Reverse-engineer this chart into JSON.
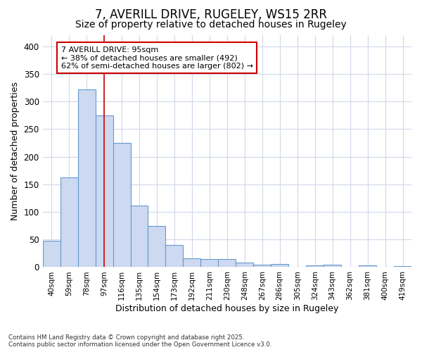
{
  "title": "7, AVERILL DRIVE, RUGELEY, WS15 2RR",
  "subtitle": "Size of property relative to detached houses in Rugeley",
  "xlabel": "Distribution of detached houses by size in Rugeley",
  "ylabel": "Number of detached properties",
  "bins": [
    "40sqm",
    "59sqm",
    "78sqm",
    "97sqm",
    "116sqm",
    "135sqm",
    "154sqm",
    "173sqm",
    "192sqm",
    "211sqm",
    "230sqm",
    "248sqm",
    "267sqm",
    "286sqm",
    "305sqm",
    "324sqm",
    "343sqm",
    "362sqm",
    "381sqm",
    "400sqm",
    "419sqm"
  ],
  "values": [
    48,
    162,
    322,
    275,
    225,
    112,
    74,
    40,
    16,
    15,
    14,
    8,
    5,
    6,
    0,
    3,
    4,
    0,
    3,
    0,
    2
  ],
  "bar_color": "#ccd9f0",
  "bar_edge_color": "#6699cc",
  "background_color": "#ffffff",
  "grid_color": "#d0d8e8",
  "vline_x_index": 3,
  "vline_color": "#cc0000",
  "annotation_text": "7 AVERILL DRIVE: 95sqm\n← 38% of detached houses are smaller (492)\n62% of semi-detached houses are larger (802) →",
  "annotation_box_color": "white",
  "annotation_box_edge_color": "#cc0000",
  "footnote1": "Contains HM Land Registry data © Crown copyright and database right 2025.",
  "footnote2": "Contains public sector information licensed under the Open Government Licence v3.0.",
  "ylim": [
    0,
    420
  ],
  "title_fontsize": 12,
  "subtitle_fontsize": 10,
  "ylabel_fontsize": 9,
  "xlabel_fontsize": 9,
  "tick_fontsize": 7.5,
  "annot_fontsize": 8
}
